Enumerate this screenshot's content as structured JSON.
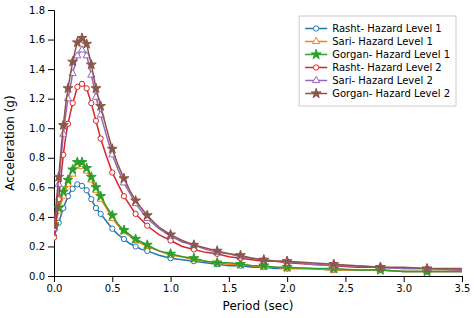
{
  "chart_data": {
    "type": "line",
    "xlabel": "Period (sec)",
    "ylabel": "Acceleration (g)",
    "xlim": [
      0,
      3.5
    ],
    "ylim": [
      0,
      1.8
    ],
    "xticks": [
      {
        "value": 0,
        "label": "0.0"
      },
      0.5,
      {
        "value": 1.0,
        "label": "1.0"
      },
      1.5,
      {
        "value": 2.0,
        "label": "2.0"
      },
      2.5,
      {
        "value": 3.0,
        "label": "3.0"
      },
      3.5
    ],
    "yticks": [
      {
        "value": 0,
        "label": "0.0"
      },
      0.2,
      0.4,
      0.6,
      0.8,
      {
        "value": 1.0,
        "label": "1.0"
      },
      1.2,
      1.4,
      1.6,
      1.8
    ],
    "grid": false,
    "legend": "top-right",
    "x": [
      0.0,
      0.02,
      0.04,
      0.06,
      0.08,
      0.1,
      0.12,
      0.14,
      0.16,
      0.18,
      0.2,
      0.22,
      0.24,
      0.26,
      0.28,
      0.3,
      0.32,
      0.34,
      0.36,
      0.38,
      0.4,
      0.45,
      0.5,
      0.55,
      0.6,
      0.65,
      0.7,
      0.75,
      0.8,
      0.9,
      1.0,
      1.1,
      1.2,
      1.3,
      1.4,
      1.5,
      1.6,
      1.7,
      1.8,
      1.9,
      2.0,
      2.2,
      2.4,
      2.6,
      2.8,
      3.0,
      3.2,
      3.5
    ],
    "series": [
      {
        "name": "Rasht- Hazard Level 1",
        "marker": "circle",
        "line_style": "solid",
        "values": [
          0.27,
          0.31,
          0.36,
          0.41,
          0.46,
          0.5,
          0.54,
          0.57,
          0.59,
          0.61,
          0.62,
          0.62,
          0.61,
          0.6,
          0.58,
          0.55,
          0.52,
          0.49,
          0.46,
          0.44,
          0.42,
          0.37,
          0.32,
          0.28,
          0.25,
          0.22,
          0.2,
          0.18,
          0.17,
          0.14,
          0.12,
          0.11,
          0.1,
          0.09,
          0.08,
          0.07,
          0.07,
          0.06,
          0.06,
          0.05,
          0.05,
          0.05,
          0.04,
          0.04,
          0.04,
          0.03,
          0.03,
          0.03
        ]
      },
      {
        "name": "Sari- Hazard Level 1",
        "marker": "triangle",
        "line_style": "solid",
        "values": [
          0.33,
          0.38,
          0.44,
          0.49,
          0.54,
          0.58,
          0.62,
          0.66,
          0.69,
          0.72,
          0.75,
          0.75,
          0.74,
          0.73,
          0.71,
          0.68,
          0.65,
          0.61,
          0.58,
          0.55,
          0.52,
          0.46,
          0.39,
          0.34,
          0.3,
          0.27,
          0.24,
          0.22,
          0.2,
          0.17,
          0.14,
          0.13,
          0.11,
          0.1,
          0.09,
          0.08,
          0.08,
          0.07,
          0.06,
          0.06,
          0.05,
          0.05,
          0.04,
          0.04,
          0.04,
          0.03,
          0.03,
          0.03
        ]
      },
      {
        "name": "Gorgan- Hazard Level 1",
        "marker": "star",
        "line_style": "solid",
        "values": [
          0.35,
          0.4,
          0.46,
          0.52,
          0.57,
          0.61,
          0.65,
          0.69,
          0.72,
          0.75,
          0.77,
          0.77,
          0.77,
          0.75,
          0.73,
          0.7,
          0.67,
          0.63,
          0.6,
          0.57,
          0.54,
          0.47,
          0.41,
          0.35,
          0.31,
          0.28,
          0.25,
          0.23,
          0.21,
          0.17,
          0.15,
          0.13,
          0.12,
          0.1,
          0.09,
          0.09,
          0.08,
          0.07,
          0.07,
          0.06,
          0.06,
          0.05,
          0.05,
          0.04,
          0.04,
          0.03,
          0.03,
          0.03
        ]
      },
      {
        "name": "Rasht- Hazard Level 2",
        "marker": "circle",
        "line_style": "solid",
        "values": [
          0.26,
          0.38,
          0.52,
          0.67,
          0.82,
          0.94,
          1.03,
          1.1,
          1.17,
          1.22,
          1.28,
          1.3,
          1.3,
          1.29,
          1.27,
          1.22,
          1.17,
          1.11,
          1.05,
          0.99,
          0.93,
          0.81,
          0.7,
          0.62,
          0.54,
          0.48,
          0.42,
          0.38,
          0.34,
          0.28,
          0.24,
          0.2,
          0.18,
          0.16,
          0.15,
          0.13,
          0.12,
          0.11,
          0.1,
          0.1,
          0.09,
          0.08,
          0.07,
          0.06,
          0.06,
          0.05,
          0.05,
          0.04
        ]
      },
      {
        "name": "Sari- Hazard Level 2",
        "marker": "triangle",
        "line_style": "solid",
        "values": [
          0.32,
          0.46,
          0.62,
          0.79,
          0.96,
          1.09,
          1.2,
          1.28,
          1.37,
          1.43,
          1.49,
          1.51,
          1.53,
          1.52,
          1.49,
          1.43,
          1.36,
          1.29,
          1.21,
          1.15,
          1.09,
          0.95,
          0.82,
          0.72,
          0.63,
          0.56,
          0.49,
          0.44,
          0.39,
          0.32,
          0.27,
          0.23,
          0.21,
          0.18,
          0.16,
          0.15,
          0.13,
          0.12,
          0.11,
          0.1,
          0.1,
          0.08,
          0.07,
          0.07,
          0.06,
          0.05,
          0.05,
          0.04
        ]
      },
      {
        "name": "Gorgan- Hazard Level 2",
        "marker": "star",
        "line_style": "solid",
        "values": [
          0.34,
          0.5,
          0.67,
          0.85,
          1.02,
          1.16,
          1.27,
          1.36,
          1.45,
          1.52,
          1.58,
          1.6,
          1.61,
          1.6,
          1.57,
          1.5,
          1.43,
          1.35,
          1.27,
          1.21,
          1.15,
          1.0,
          0.86,
          0.75,
          0.66,
          0.58,
          0.51,
          0.46,
          0.41,
          0.33,
          0.28,
          0.24,
          0.21,
          0.19,
          0.17,
          0.15,
          0.14,
          0.12,
          0.11,
          0.1,
          0.1,
          0.09,
          0.08,
          0.07,
          0.06,
          0.06,
          0.05,
          0.05
        ]
      }
    ]
  }
}
